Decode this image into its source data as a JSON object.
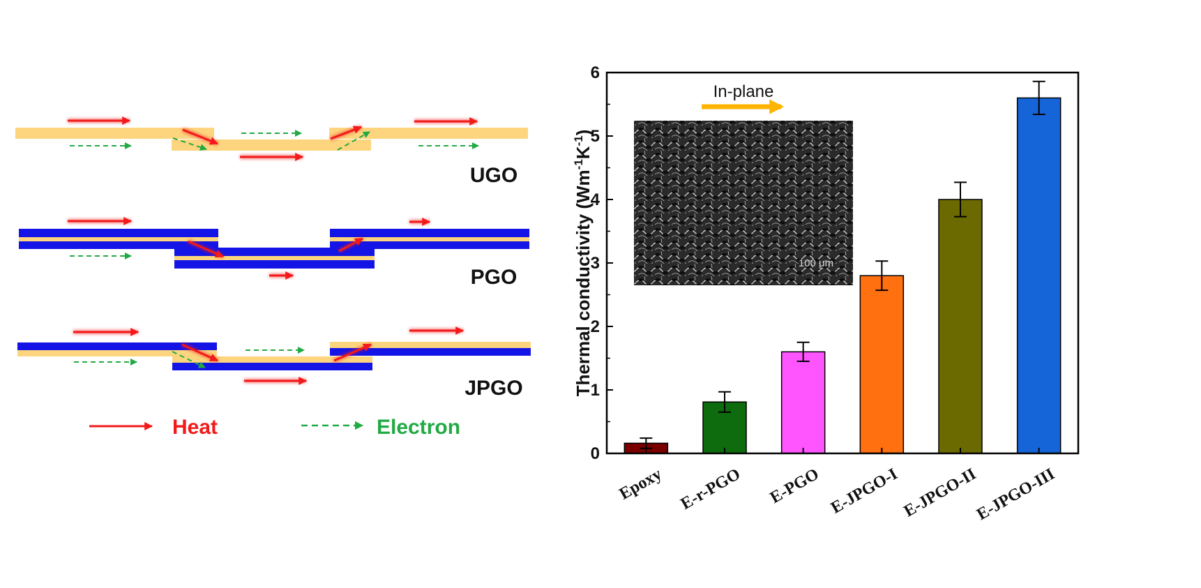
{
  "diagram": {
    "ugo_label": "UGO",
    "pgo_label": "PGO",
    "jpgo_label": "JPGO",
    "legend": {
      "heat_label": "Heat",
      "electron_label": "Electron"
    },
    "colors": {
      "graphene": "#FDD57E",
      "polymer": "#1414E6",
      "heat": "#F21A1A",
      "electron": "#22AA44"
    }
  },
  "chart_data": {
    "type": "bar",
    "categories": [
      "Epoxy",
      "E-r-PGO",
      "E-PGO",
      "E-JPGO-I",
      "E-JPGO-II",
      "E-JPGO-III"
    ],
    "values": [
      0.16,
      0.81,
      1.6,
      2.8,
      4.0,
      5.6
    ],
    "errors": [
      0.08,
      0.16,
      0.15,
      0.23,
      0.27,
      0.26
    ],
    "colors": [
      "#7A0000",
      "#0E6B0E",
      "#FF55FF",
      "#FF7010",
      "#6B6A00",
      "#1565D8"
    ],
    "ylim": [
      0,
      6
    ],
    "yticks": [
      "0",
      "1",
      "2",
      "3",
      "4",
      "5",
      "6"
    ],
    "ylabel": "Thermal conductivity (Wm",
    "ylabel_sup1": "-1",
    "ylabel_mid": "K",
    "ylabel_sup2": "-1",
    "ylabel_end": ")",
    "inset": {
      "arrow_label": "In-plane",
      "arrow_color": "#FFB400",
      "scale_label": "100 μm"
    }
  }
}
